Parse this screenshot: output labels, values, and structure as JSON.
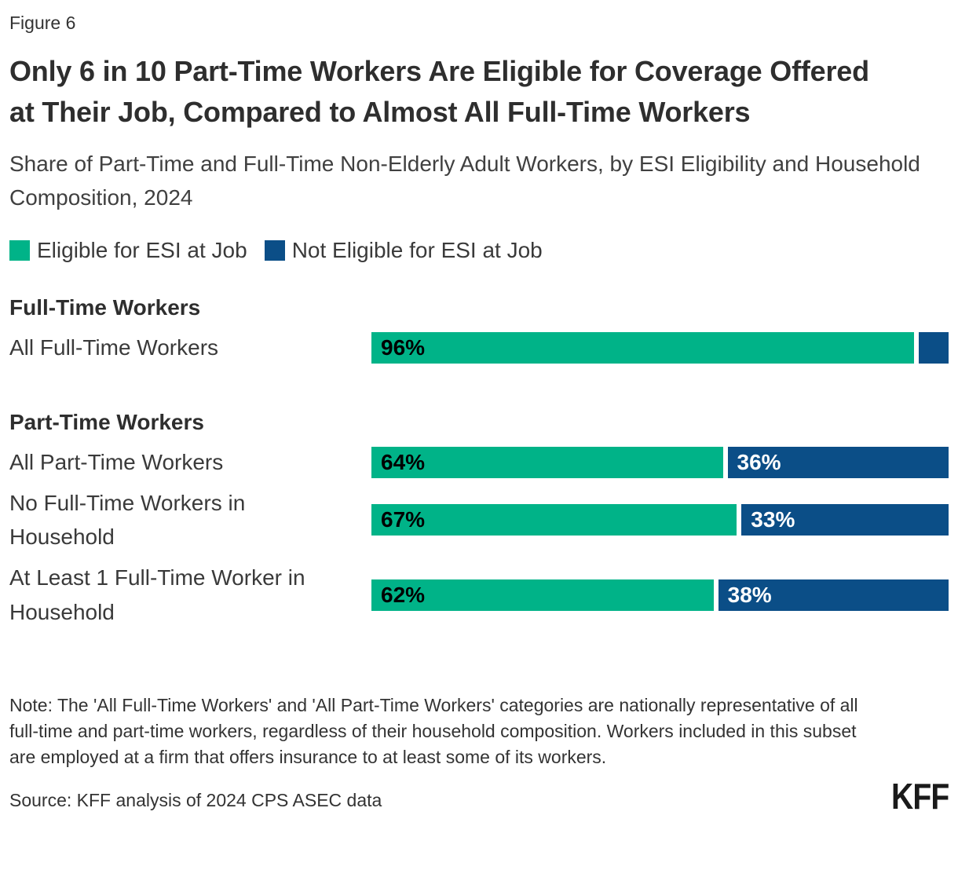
{
  "figure_label": "Figure 6",
  "title": "Only 6 in 10 Part-Time Workers Are Eligible for Coverage Offered at Their Job, Compared to Almost All Full-Time Workers",
  "subtitle": "Share of Part-Time and Full-Time Non-Elderly Adult Workers, by ESI Eligibility and Household Composition, 2024",
  "colors": {
    "eligible": "#00B388",
    "not_eligible": "#0B4E87"
  },
  "legend": [
    {
      "label": "Eligible for ESI at Job",
      "color": "#00B388"
    },
    {
      "label": "Not Eligible for ESI at Job",
      "color": "#0B4E87"
    }
  ],
  "chart_data": {
    "type": "bar",
    "orientation": "horizontal",
    "stacked": true,
    "xlim": [
      0,
      100
    ],
    "unit": "percent",
    "series_names": [
      "Eligible for ESI at Job",
      "Not Eligible for ESI at Job"
    ],
    "sections": [
      {
        "header": "Full-Time Workers",
        "rows": [
          {
            "label": "All Full-Time Workers",
            "eligible": 96,
            "not_eligible": 4,
            "eligible_label": "96%",
            "not_eligible_label": ""
          }
        ]
      },
      {
        "header": "Part-Time Workers",
        "rows": [
          {
            "label": "All Part-Time Workers",
            "eligible": 64,
            "not_eligible": 36,
            "eligible_label": "64%",
            "not_eligible_label": "36%"
          },
          {
            "label": "No Full-Time Workers in Household",
            "eligible": 67,
            "not_eligible": 33,
            "eligible_label": "67%",
            "not_eligible_label": "33%"
          },
          {
            "label": "At Least 1 Full-Time Worker in Household",
            "eligible": 62,
            "not_eligible": 38,
            "eligible_label": "62%",
            "not_eligible_label": "38%"
          }
        ]
      }
    ]
  },
  "note": "Note: The 'All Full-Time Workers' and 'All Part-Time Workers' categories are nationally representative of all full-time and part-time workers, regardless of their household composition. Workers included in this subset are employed at a firm that offers insurance to at least some of its workers.",
  "source": "Source: KFF analysis of 2024 CPS ASEC data",
  "logo": "KFF"
}
